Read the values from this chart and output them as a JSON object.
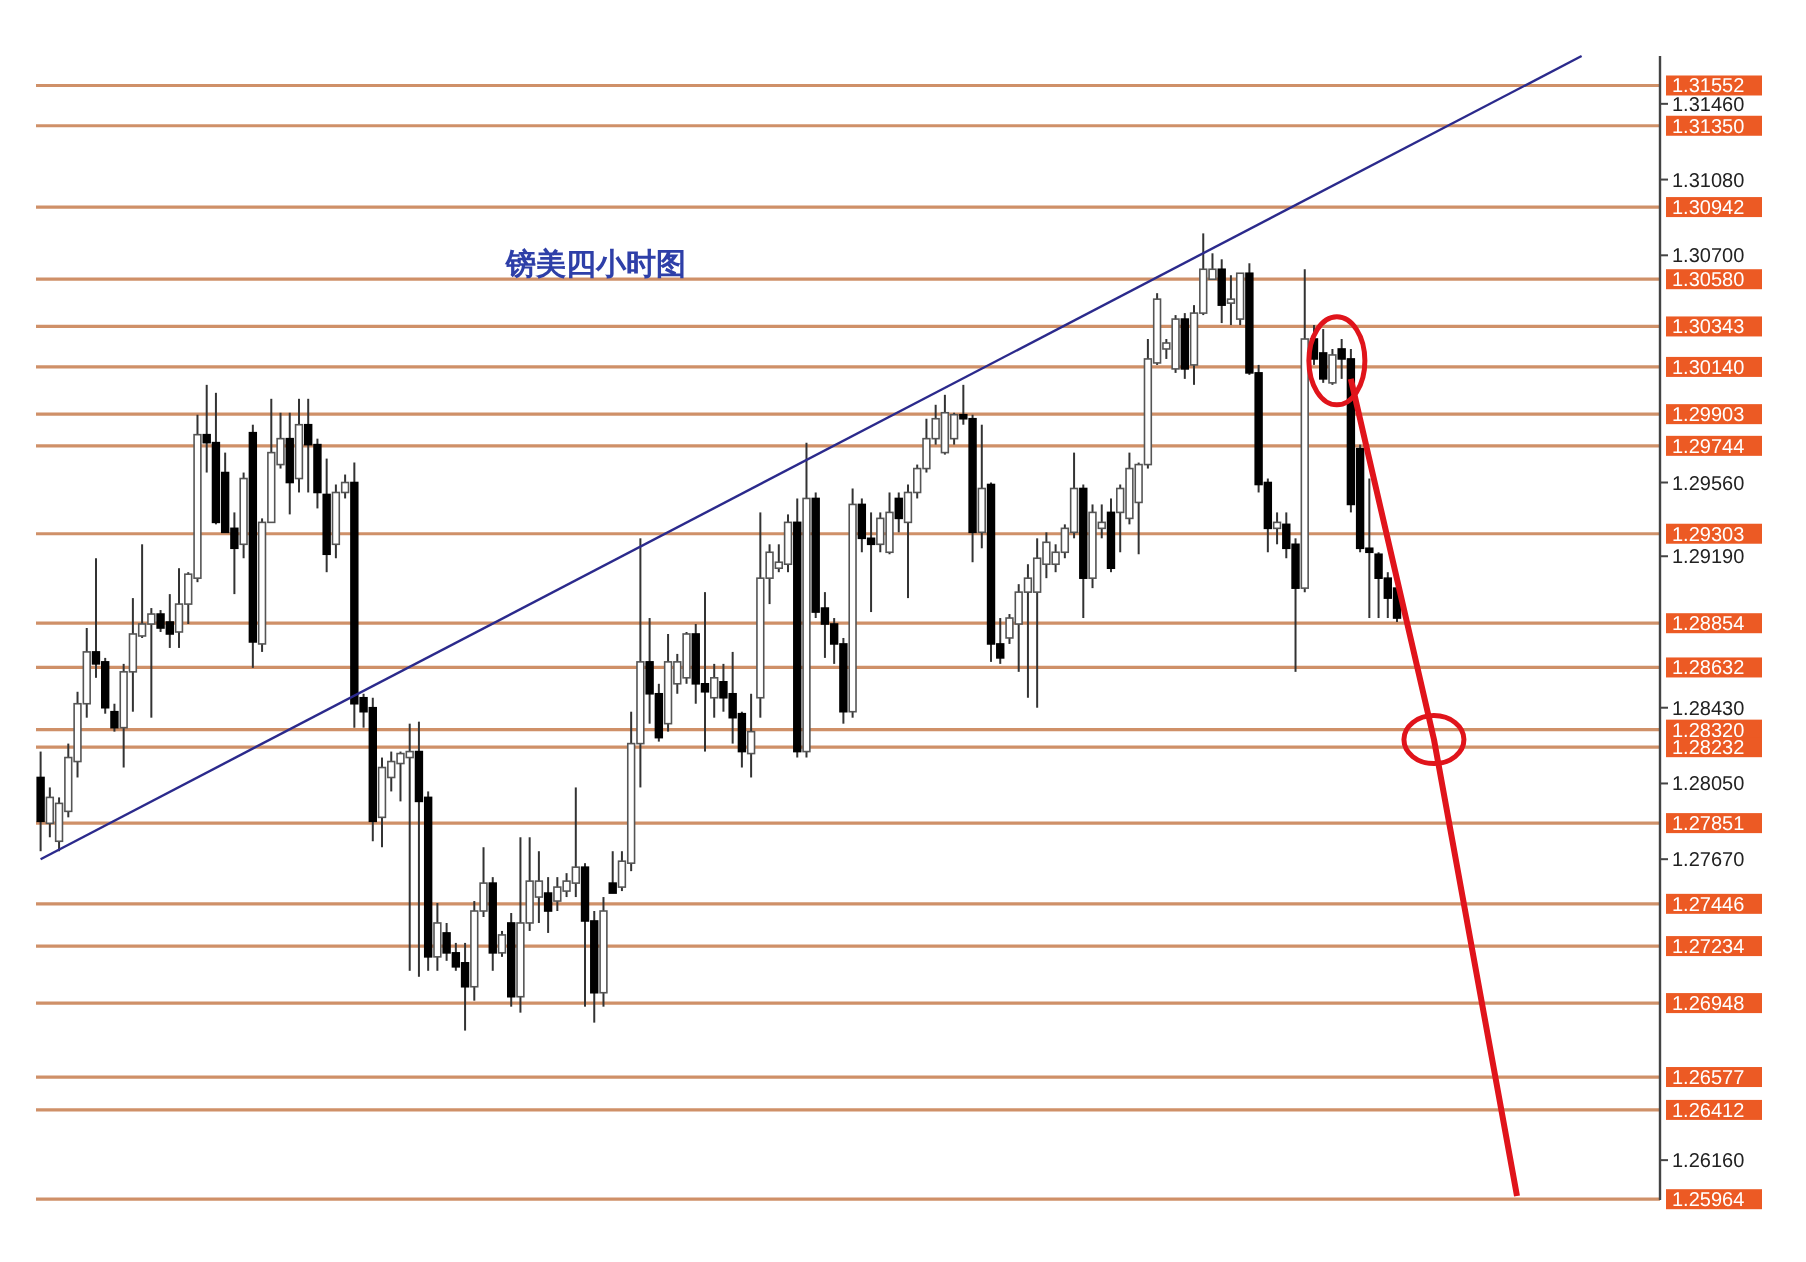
{
  "chart_data": {
    "type": "candlestick",
    "title": "镑美四小时图",
    "tick_labels": "y",
    "categories": [
      null,
      null,
      null,
      null,
      null,
      null,
      null,
      null,
      null,
      null,
      null,
      null,
      null,
      null,
      null,
      null,
      null,
      null,
      null,
      null,
      null,
      null,
      null,
      null,
      null,
      null,
      null,
      null,
      null,
      null,
      null,
      null,
      null,
      null,
      null,
      null,
      null,
      null,
      null,
      null,
      null,
      null,
      null,
      null,
      null,
      null,
      null,
      null,
      null,
      null,
      null,
      null,
      null,
      null,
      null,
      null,
      null,
      null,
      null,
      null,
      null,
      null,
      null,
      null,
      null,
      null,
      null,
      null,
      null,
      null,
      null,
      null,
      null,
      null,
      null,
      null,
      null,
      null,
      null,
      null,
      null,
      null,
      null,
      null,
      null,
      null,
      null,
      null,
      null,
      null,
      null,
      null,
      null,
      null,
      null,
      null,
      null,
      null,
      null,
      null,
      null,
      null,
      null,
      null,
      null,
      null,
      null,
      null,
      null,
      null,
      null,
      null,
      null,
      null,
      null,
      null,
      null,
      null,
      null,
      null,
      null,
      null,
      null,
      null,
      null,
      null,
      null,
      null,
      null,
      null,
      null,
      null,
      null,
      null,
      null,
      null,
      null,
      null,
      null,
      null,
      null,
      null,
      null,
      null,
      null,
      null,
      null,
      null,
      null,
      null,
      null,
      null,
      null,
      null,
      null,
      null,
      null,
      null,
      null,
      null,
      null,
      null,
      null,
      null,
      null,
      null,
      null,
      null,
      null,
      null,
      null,
      null,
      null,
      null,
      null,
      null
    ],
    "ohlc": [
      [
        1.2808,
        1.2821,
        1.2771,
        1.2786
      ],
      [
        1.2785,
        1.2803,
        1.2778,
        1.2798
      ],
      [
        1.2776,
        1.2798,
        1.2771,
        1.2795
      ],
      [
        1.2791,
        1.2825,
        1.2788,
        1.2818
      ],
      [
        1.2816,
        1.2851,
        1.2808,
        1.2845
      ],
      [
        1.2845,
        1.2883,
        1.2838,
        1.2871
      ],
      [
        1.2871,
        1.2918,
        1.2858,
        1.2865
      ],
      [
        1.2866,
        1.2868,
        1.284,
        1.2843
      ],
      [
        1.2841,
        1.2845,
        1.2831,
        1.2833
      ],
      [
        1.2833,
        1.2865,
        1.2813,
        1.2861
      ],
      [
        1.2861,
        1.2898,
        1.2841,
        1.288
      ],
      [
        1.2879,
        1.2925,
        1.2878,
        1.2885
      ],
      [
        1.2885,
        1.2893,
        1.2838,
        1.289
      ],
      [
        1.289,
        1.2892,
        1.2881,
        1.2883
      ],
      [
        1.2886,
        1.29,
        1.2873,
        1.288
      ],
      [
        1.2881,
        1.2913,
        1.2873,
        1.2895
      ],
      [
        1.2895,
        1.2911,
        1.2885,
        1.291
      ],
      [
        1.2908,
        1.299,
        1.2906,
        1.298
      ],
      [
        1.298,
        1.3005,
        1.2961,
        1.2976
      ],
      [
        1.2976,
        1.3001,
        1.2935,
        1.2936
      ],
      [
        1.2961,
        1.2971,
        1.2931,
        1.2931
      ],
      [
        1.2933,
        1.2941,
        1.29,
        1.2923
      ],
      [
        1.2925,
        1.2961,
        1.2918,
        1.2958
      ],
      [
        1.2981,
        1.2985,
        1.2863,
        1.2876
      ],
      [
        1.2875,
        1.2938,
        1.2871,
        1.2936
      ],
      [
        1.2936,
        1.2998,
        1.2936,
        1.2971
      ],
      [
        1.2965,
        1.2991,
        1.2963,
        1.2978
      ],
      [
        1.2978,
        1.2991,
        1.294,
        1.2956
      ],
      [
        1.2958,
        1.2998,
        1.2951,
        1.2985
      ],
      [
        1.2985,
        1.2998,
        1.2951,
        1.2975
      ],
      [
        1.2975,
        1.2978,
        1.2943,
        1.2951
      ],
      [
        1.295,
        1.2968,
        1.2911,
        1.292
      ],
      [
        1.2925,
        1.2955,
        1.2918,
        1.2951
      ],
      [
        1.2951,
        1.296,
        1.2948,
        1.2956
      ],
      [
        1.2956,
        1.2966,
        1.2833,
        1.2845
      ],
      [
        1.2848,
        1.285,
        1.2833,
        1.2841
      ],
      [
        1.2843,
        1.2848,
        1.2776,
        1.2786
      ],
      [
        1.2788,
        1.2818,
        1.2773,
        1.2813
      ],
      [
        1.2808,
        1.2821,
        1.2801,
        1.2816
      ],
      [
        1.2815,
        1.2821,
        1.2796,
        1.282
      ],
      [
        1.2818,
        1.2835,
        1.2711,
        1.2821
      ],
      [
        1.2821,
        1.2836,
        1.2708,
        1.2796
      ],
      [
        1.2798,
        1.2801,
        1.2711,
        1.2718
      ],
      [
        1.2718,
        1.2745,
        1.2711,
        1.2735
      ],
      [
        1.273,
        1.2735,
        1.2716,
        1.272
      ],
      [
        1.272,
        1.2725,
        1.2711,
        1.2713
      ],
      [
        1.2715,
        1.2725,
        1.2681,
        1.2703
      ],
      [
        1.2703,
        1.2746,
        1.2696,
        1.2741
      ],
      [
        1.2741,
        1.2773,
        1.2738,
        1.2755
      ],
      [
        1.2755,
        1.2758,
        1.2711,
        1.272
      ],
      [
        1.272,
        1.2731,
        1.2718,
        1.2729
      ],
      [
        1.2735,
        1.274,
        1.2693,
        1.2698
      ],
      [
        1.2698,
        1.2778,
        1.269,
        1.2735
      ],
      [
        1.2735,
        1.2778,
        1.2731,
        1.2756
      ],
      [
        1.2748,
        1.2771,
        1.2735,
        1.2756
      ],
      [
        1.275,
        1.2758,
        1.273,
        1.2741
      ],
      [
        1.2746,
        1.2758,
        1.2741,
        1.2753
      ],
      [
        1.2751,
        1.276,
        1.2748,
        1.2756
      ],
      [
        1.2755,
        1.2803,
        1.2748,
        1.2763
      ],
      [
        1.2763,
        1.2765,
        1.2693,
        1.2736
      ],
      [
        1.2736,
        1.2741,
        1.2685,
        1.27
      ],
      [
        1.27,
        1.2748,
        1.2693,
        1.2741
      ],
      [
        1.2755,
        1.2771,
        1.275,
        1.275
      ],
      [
        1.2753,
        1.2771,
        1.2751,
        1.2766
      ],
      [
        1.2765,
        1.2841,
        1.2761,
        1.2825
      ],
      [
        1.2825,
        1.2928,
        1.2803,
        1.2866
      ],
      [
        1.2866,
        1.2888,
        1.2835,
        1.285
      ],
      [
        1.285,
        1.2855,
        1.2826,
        1.2828
      ],
      [
        1.2835,
        1.288,
        1.2831,
        1.2866
      ],
      [
        1.2855,
        1.287,
        1.285,
        1.2866
      ],
      [
        1.2858,
        1.2881,
        1.2855,
        1.288
      ],
      [
        1.288,
        1.2885,
        1.2845,
        1.2855
      ],
      [
        1.2855,
        1.2901,
        1.2821,
        1.2851
      ],
      [
        1.2848,
        1.2865,
        1.2838,
        1.2858
      ],
      [
        1.2856,
        1.2865,
        1.2841,
        1.2848
      ],
      [
        1.285,
        1.2871,
        1.2825,
        1.2838
      ],
      [
        1.284,
        1.2841,
        1.2813,
        1.2821
      ],
      [
        1.282,
        1.285,
        1.2808,
        1.2831
      ],
      [
        1.2848,
        1.2941,
        1.2838,
        1.2908
      ],
      [
        1.2908,
        1.2925,
        1.2895,
        1.2921
      ],
      [
        1.2913,
        1.2925,
        1.2911,
        1.2916
      ],
      [
        1.2915,
        1.294,
        1.2911,
        1.2936
      ],
      [
        1.2936,
        1.2948,
        1.2818,
        1.2821
      ],
      [
        1.2821,
        1.2976,
        1.2818,
        1.2948
      ],
      [
        1.2948,
        1.2951,
        1.2888,
        1.2891
      ],
      [
        1.2893,
        1.2901,
        1.2868,
        1.2885
      ],
      [
        1.2885,
        1.2888,
        1.2865,
        1.2875
      ],
      [
        1.2875,
        1.2878,
        1.2835,
        1.2841
      ],
      [
        1.2841,
        1.2953,
        1.2838,
        1.2945
      ],
      [
        1.2945,
        1.2948,
        1.2921,
        1.2928
      ],
      [
        1.2928,
        1.2941,
        1.2891,
        1.2925
      ],
      [
        1.2925,
        1.2941,
        1.2921,
        1.2938
      ],
      [
        1.2921,
        1.2951,
        1.292,
        1.2941
      ],
      [
        1.2948,
        1.2951,
        1.2931,
        1.2938
      ],
      [
        1.2936,
        1.2955,
        1.2898,
        1.2951
      ],
      [
        1.2951,
        1.2965,
        1.2948,
        1.2963
      ],
      [
        1.2963,
        1.2988,
        1.2961,
        1.2978
      ],
      [
        1.2978,
        1.2995,
        1.2975,
        1.2988
      ],
      [
        1.2971,
        1.3,
        1.297,
        1.2991
      ],
      [
        1.2978,
        1.2991,
        1.2975,
        1.299
      ],
      [
        1.299,
        1.3005,
        1.2985,
        1.2988
      ],
      [
        1.2988,
        1.299,
        1.2916,
        1.2931
      ],
      [
        1.2931,
        1.2985,
        1.2923,
        1.2953
      ],
      [
        1.2955,
        1.2956,
        1.2866,
        1.2875
      ],
      [
        1.2875,
        1.2888,
        1.2865,
        1.2868
      ],
      [
        1.2878,
        1.289,
        1.2875,
        1.2888
      ],
      [
        1.2885,
        1.2905,
        1.2861,
        1.2901
      ],
      [
        1.2901,
        1.2915,
        1.2848,
        1.2908
      ],
      [
        1.2901,
        1.2928,
        1.2843,
        1.2918
      ],
      [
        1.2915,
        1.2931,
        1.2908,
        1.2926
      ],
      [
        1.2915,
        1.2925,
        1.2911,
        1.2921
      ],
      [
        1.2921,
        1.2935,
        1.2918,
        1.2933
      ],
      [
        1.2931,
        1.2971,
        1.2928,
        1.2953
      ],
      [
        1.2953,
        1.2955,
        1.2888,
        1.2908
      ],
      [
        1.2908,
        1.2945,
        1.2903,
        1.2941
      ],
      [
        1.2933,
        1.2945,
        1.2928,
        1.2936
      ],
      [
        1.2941,
        1.2948,
        1.2911,
        1.2913
      ],
      [
        1.2941,
        1.2955,
        1.2921,
        1.2953
      ],
      [
        1.2938,
        1.2971,
        1.2935,
        1.2963
      ],
      [
        1.2946,
        1.2966,
        1.292,
        1.2965
      ],
      [
        1.2965,
        1.3028,
        1.2963,
        1.3018
      ],
      [
        1.3016,
        1.3051,
        1.3015,
        1.3048
      ],
      [
        1.3023,
        1.3028,
        1.3018,
        1.3026
      ],
      [
        1.3013,
        1.304,
        1.3011,
        1.3038
      ],
      [
        1.3038,
        1.3041,
        1.3008,
        1.3013
      ],
      [
        1.3015,
        1.3045,
        1.3005,
        1.3041
      ],
      [
        1.3041,
        1.3081,
        1.304,
        1.3063
      ],
      [
        1.3058,
        1.3071,
        1.3058,
        1.3063
      ],
      [
        1.3063,
        1.3068,
        1.3036,
        1.3045
      ],
      [
        1.3046,
        1.306,
        1.3035,
        1.3048
      ],
      [
        1.3038,
        1.3061,
        1.3035,
        1.3061
      ],
      [
        1.3061,
        1.3066,
        1.301,
        1.3011
      ],
      [
        1.3011,
        1.3015,
        1.2951,
        1.2955
      ],
      [
        1.2956,
        1.2958,
        1.2921,
        1.2933
      ],
      [
        1.2933,
        1.2941,
        1.2925,
        1.2936
      ],
      [
        1.2935,
        1.2941,
        1.2918,
        1.2923
      ],
      [
        1.2925,
        1.2928,
        1.2861,
        1.2903
      ],
      [
        1.2903,
        1.3063,
        1.2901,
        1.3028
      ],
      [
        1.3028,
        1.3035,
        1.3015,
        1.3018
      ],
      [
        1.3021,
        1.3033,
        1.3006,
        1.3008
      ],
      [
        1.3006,
        1.3023,
        1.3005,
        1.302
      ],
      [
        1.3023,
        1.3028,
        1.3008,
        1.3018
      ],
      [
        1.3018,
        1.3023,
        1.2941,
        1.2945
      ],
      [
        1.2973,
        1.2975,
        1.2921,
        1.2923
      ],
      [
        1.2923,
        1.2958,
        1.2888,
        1.2921
      ],
      [
        1.292,
        1.2921,
        1.2888,
        1.2908
      ],
      [
        1.2908,
        1.2911,
        1.2888,
        1.2898
      ],
      [
        1.2903,
        1.2906,
        1.2886,
        1.2888
      ],
      null,
      null,
      null,
      null,
      null,
      null,
      null,
      null,
      null,
      null,
      null,
      null,
      null,
      null,
      null,
      null,
      null,
      null,
      null,
      null,
      null,
      null,
      null,
      null,
      null,
      null,
      null,
      null
    ],
    "series": [
      {
        "type": "line",
        "color": "#2b2a8c",
        "values": [
          1.2767,
          null,
          null,
          null,
          null,
          null,
          null,
          null,
          null,
          null,
          null,
          null,
          null,
          null,
          null,
          null,
          null,
          null,
          null,
          null,
          null,
          null,
          null,
          null,
          null,
          null,
          null,
          null,
          null,
          null,
          null,
          null,
          null,
          null,
          null,
          null,
          null,
          null,
          null,
          null,
          null,
          null,
          null,
          null,
          null,
          null,
          null,
          null,
          null,
          null,
          null,
          null,
          null,
          null,
          null,
          null,
          null,
          null,
          null,
          null,
          null,
          null,
          null,
          null,
          null,
          null,
          null,
          null,
          null,
          null,
          null,
          null,
          null,
          null,
          null,
          null,
          null,
          null,
          null,
          null,
          null,
          null,
          null,
          null,
          null,
          null,
          null,
          null,
          null,
          null,
          null,
          null,
          null,
          null,
          null,
          null,
          null,
          null,
          null,
          null,
          null,
          null,
          null,
          null,
          null,
          null,
          null,
          null,
          null,
          null,
          null,
          null,
          null,
          null,
          null,
          null,
          null,
          null,
          null,
          null,
          null,
          null,
          null,
          null,
          null,
          null,
          null,
          null,
          null,
          null,
          null,
          null,
          null,
          null,
          null,
          null,
          null,
          null,
          null,
          null,
          null,
          null,
          null,
          null,
          null,
          null,
          null,
          null,
          null,
          null,
          null,
          null,
          null,
          null,
          null,
          null,
          null,
          null,
          null,
          null,
          null,
          null,
          null,
          null,
          null,
          null,
          null,
          1.317,
          null,
          null,
          null,
          null,
          null,
          null,
          null,
          null
        ]
      },
      {
        "type": "line",
        "color": "#e0141b",
        "values": [
          null,
          null,
          null,
          null,
          null,
          null,
          null,
          null,
          null,
          null,
          null,
          null,
          null,
          null,
          null,
          null,
          null,
          null,
          null,
          null,
          null,
          null,
          null,
          null,
          null,
          null,
          null,
          null,
          null,
          null,
          null,
          null,
          null,
          null,
          null,
          null,
          null,
          null,
          null,
          null,
          null,
          null,
          null,
          null,
          null,
          null,
          null,
          null,
          null,
          null,
          null,
          null,
          null,
          null,
          null,
          null,
          null,
          null,
          null,
          null,
          null,
          null,
          null,
          null,
          null,
          null,
          null,
          null,
          null,
          null,
          null,
          null,
          null,
          null,
          null,
          null,
          null,
          null,
          null,
          null,
          null,
          null,
          null,
          null,
          null,
          null,
          null,
          null,
          null,
          null,
          null,
          null,
          null,
          null,
          null,
          null,
          null,
          null,
          null,
          null,
          null,
          null,
          null,
          null,
          null,
          null,
          null,
          null,
          null,
          null,
          null,
          null,
          null,
          null,
          null,
          null,
          null,
          null,
          null,
          null,
          null,
          null,
          null,
          null,
          null,
          null,
          null,
          null,
          null,
          null,
          null,
          null,
          null,
          null,
          null,
          null,
          null,
          null,
          null,
          null,
          null,
          null,
          1.3008,
          null,
          null,
          null,
          null,
          null,
          null,
          null,
          null,
          1.2827,
          null,
          null,
          null,
          null,
          null,
          null,
          null,
          null,
          1.2598,
          null,
          null,
          null,
          null,
          null,
          null,
          null,
          null,
          null,
          null,
          null,
          null,
          null,
          null,
          null
        ]
      }
    ],
    "ylim": [
      1.2596,
      1.317
    ],
    "yticks": [
      {
        "value": 1.3146,
        "label": "1.31460"
      },
      {
        "value": 1.3108,
        "label": "1.31080"
      },
      {
        "value": 1.307,
        "label": "1.30700"
      },
      {
        "value": 1.2956,
        "label": "1.29560"
      },
      {
        "value": 1.2919,
        "label": "1.29190"
      },
      {
        "value": 1.2843,
        "label": "1.28430"
      },
      {
        "value": 1.2805,
        "label": "1.28050"
      },
      {
        "value": 1.2767,
        "label": "1.27670"
      },
      {
        "value": 1.2616,
        "label": "1.26160"
      }
    ],
    "ref_lines": [
      {
        "axis": "y",
        "value": 1.31552,
        "label": "1.31552"
      },
      {
        "axis": "y",
        "value": 1.3135,
        "label": "1.31350"
      },
      {
        "axis": "y",
        "value": 1.30942,
        "label": "1.30942"
      },
      {
        "axis": "y",
        "value": 1.3058,
        "label": "1.30580"
      },
      {
        "axis": "y",
        "value": 1.30343,
        "label": "1.30343"
      },
      {
        "axis": "y",
        "value": 1.3014,
        "label": "1.30140"
      },
      {
        "axis": "y",
        "value": 1.29903,
        "label": "1.29903"
      },
      {
        "axis": "y",
        "value": 1.29744,
        "label": "1.29744"
      },
      {
        "axis": "y",
        "value": 1.29303,
        "label": "1.29303"
      },
      {
        "axis": "y",
        "value": 1.28854,
        "label": "1.28854"
      },
      {
        "axis": "y",
        "value": 1.28632,
        "label": "1.28632"
      },
      {
        "axis": "y",
        "value": 1.2832,
        "label": "1.28320"
      },
      {
        "axis": "y",
        "value": 1.28232,
        "label": "1.28232"
      },
      {
        "axis": "y",
        "value": 1.27851,
        "label": "1.27851"
      },
      {
        "axis": "y",
        "value": 1.27446,
        "label": "1.27446"
      },
      {
        "axis": "y",
        "value": 1.27234,
        "label": "1.27234"
      },
      {
        "axis": "y",
        "value": 1.26948,
        "label": "1.26948"
      },
      {
        "axis": "y",
        "value": 1.26577,
        "label": "1.26577"
      },
      {
        "axis": "y",
        "value": 1.26412,
        "label": "1.26412"
      },
      {
        "axis": "y",
        "value": 1.25964,
        "label": "1.25964"
      }
    ]
  }
}
